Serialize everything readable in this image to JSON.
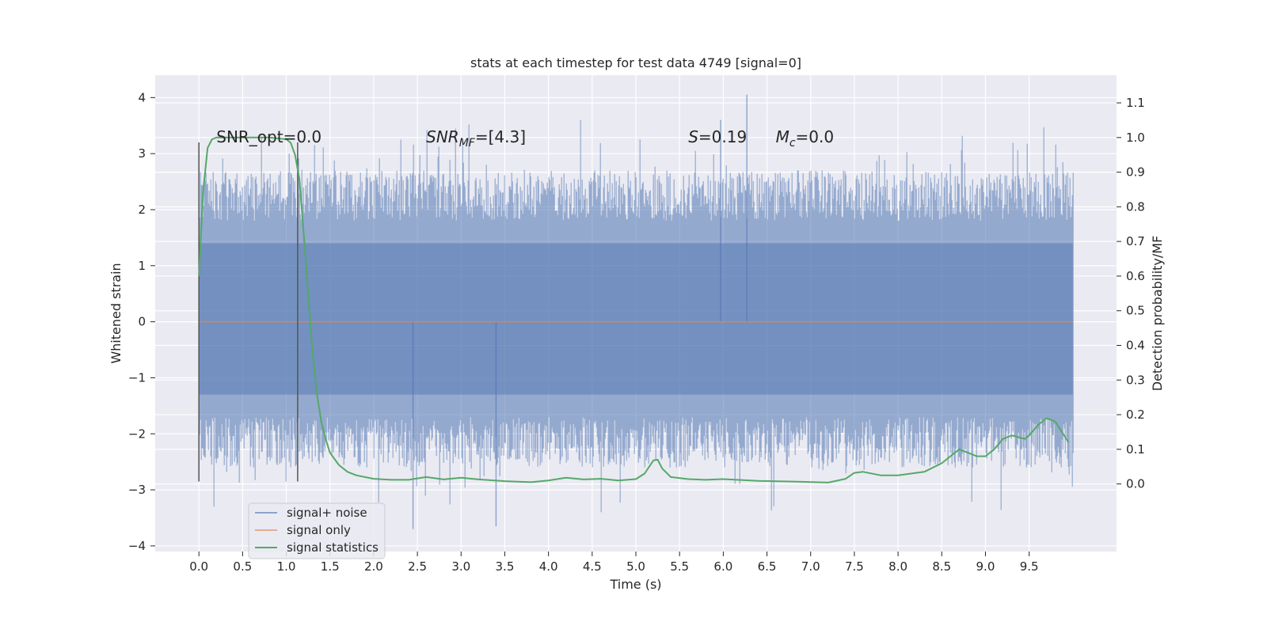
{
  "chart_data": {
    "type": "line",
    "title": "stats at each timestep for test data 4749 [signal=0]",
    "xlabel": "Time (s)",
    "ylabel": "Whitened strain",
    "y2label": "Detection probability/MF",
    "xlim": [
      -0.5,
      10.5
    ],
    "ylim": [
      -4.1,
      4.4
    ],
    "y2lim": [
      -0.195,
      1.18
    ],
    "x_ticks": [
      0.0,
      0.5,
      1.0,
      1.5,
      2.0,
      2.5,
      3.0,
      3.5,
      4.0,
      4.5,
      5.0,
      5.5,
      6.0,
      6.5,
      7.0,
      7.5,
      8.0,
      8.5,
      9.0,
      9.5
    ],
    "x_tick_labels": [
      "0.0",
      "0.5",
      "1.0",
      "1.5",
      "2.0",
      "2.5",
      "3.0",
      "3.5",
      "4.0",
      "4.5",
      "5.0",
      "5.5",
      "6.0",
      "6.5",
      "7.0",
      "7.5",
      "8.0",
      "8.5",
      "9.0",
      "9.5"
    ],
    "y_ticks": [
      4,
      3,
      2,
      1,
      0,
      -1,
      -2,
      -3,
      -4
    ],
    "y_tick_labels": [
      "4",
      "3",
      "2",
      "1",
      "0",
      "−1",
      "−2",
      "−3",
      "−4"
    ],
    "y2_ticks": [
      1.1,
      1.0,
      0.9,
      0.8,
      0.7,
      0.6,
      0.5,
      0.4,
      0.3,
      0.2,
      0.1,
      0.0
    ],
    "y2_tick_labels": [
      "1.1",
      "1.0",
      "0.9",
      "0.8",
      "0.7",
      "0.6",
      "0.5",
      "0.4",
      "0.3",
      "0.2",
      "0.1",
      "0.0"
    ],
    "grid": true,
    "legend_position": "lower-left",
    "noise_band": {
      "name": "signal+ noise",
      "x_range": [
        0.0,
        10.0
      ],
      "core_range": [
        -1.3,
        1.4
      ],
      "typical_extent": [
        -2.3,
        2.4
      ],
      "spike_max": 4.05,
      "spike_min": -3.7,
      "color": "#4c72b0"
    },
    "signal_only": {
      "name": "signal only",
      "x": [
        0.0,
        10.0
      ],
      "y": [
        0.0,
        0.0
      ],
      "color": "#dd8452"
    },
    "signal_statistics": {
      "name": "signal statistics",
      "color": "#55a868",
      "axis": "right",
      "x": [
        0.0,
        0.05,
        0.1,
        0.15,
        0.2,
        0.3,
        0.5,
        0.8,
        1.0,
        1.05,
        1.1,
        1.15,
        1.2,
        1.25,
        1.3,
        1.35,
        1.4,
        1.45,
        1.5,
        1.6,
        1.7,
        1.8,
        2.0,
        2.2,
        2.4,
        2.6,
        2.8,
        3.0,
        3.2,
        3.5,
        3.8,
        4.0,
        4.2,
        4.4,
        4.6,
        4.8,
        5.0,
        5.1,
        5.2,
        5.25,
        5.3,
        5.4,
        5.6,
        5.8,
        6.0,
        6.4,
        6.8,
        7.2,
        7.4,
        7.5,
        7.6,
        7.8,
        8.0,
        8.3,
        8.5,
        8.7,
        8.8,
        8.9,
        9.0,
        9.1,
        9.2,
        9.3,
        9.45,
        9.5,
        9.6,
        9.7,
        9.8,
        9.9,
        9.95
      ],
      "y": [
        0.6,
        0.85,
        0.97,
        0.995,
        1.0,
        1.0,
        1.0,
        1.0,
        0.995,
        0.985,
        0.95,
        0.88,
        0.72,
        0.55,
        0.38,
        0.26,
        0.18,
        0.13,
        0.09,
        0.055,
        0.035,
        0.025,
        0.015,
        0.012,
        0.012,
        0.02,
        0.013,
        0.018,
        0.013,
        0.008,
        0.005,
        0.01,
        0.018,
        0.013,
        0.015,
        0.01,
        0.014,
        0.03,
        0.068,
        0.07,
        0.045,
        0.02,
        0.014,
        0.012,
        0.014,
        0.009,
        0.007,
        0.004,
        0.015,
        0.032,
        0.035,
        0.025,
        0.025,
        0.035,
        0.06,
        0.1,
        0.09,
        0.08,
        0.08,
        0.1,
        0.13,
        0.14,
        0.13,
        0.14,
        0.17,
        0.19,
        0.18,
        0.14,
        0.12
      ]
    },
    "vertical_lines": [
      {
        "x": 0.0,
        "y_range": [
          -2.85,
          3.2
        ]
      },
      {
        "x": 1.13,
        "y_range": [
          -2.85,
          3.2
        ]
      }
    ],
    "annotations": [
      {
        "text": "SNR_opt=0.0",
        "x": 0.2,
        "y": 3.2
      },
      {
        "text_main": "SNR",
        "text_sub": "MF",
        "text_rest": "=[4.3]",
        "x": 2.6,
        "y": 3.2
      },
      {
        "text_main": "S",
        "text_sub": "",
        "text_rest": "=0.19",
        "x": 5.6,
        "y": 3.2
      },
      {
        "text_main": "M",
        "text_sub": "c",
        "text_rest": "=0.0",
        "x": 6.6,
        "y": 3.2
      }
    ],
    "legend": [
      {
        "label": "signal+ noise",
        "color": "#4c72b0"
      },
      {
        "label": "signal only",
        "color": "#dd8452"
      },
      {
        "label": "signal statistics",
        "color": "#55a868"
      }
    ]
  }
}
